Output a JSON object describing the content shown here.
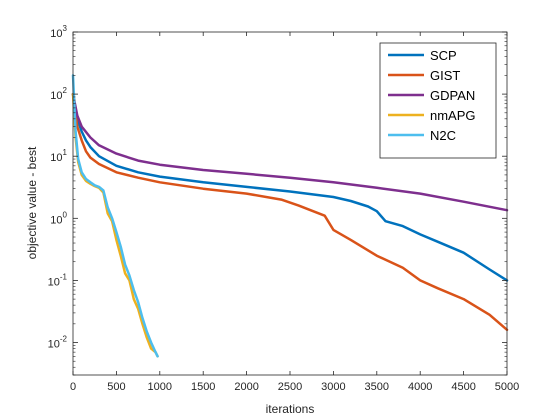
{
  "chart_data": {
    "type": "line",
    "xlabel": "iterations",
    "ylabel": "objective value - best",
    "xlim": [
      0,
      5000
    ],
    "ylim": [
      0.003,
      1000
    ],
    "yscale": "log",
    "grid": false,
    "legend_placement": "top-right",
    "x_ticks": [
      0,
      500,
      1000,
      1500,
      2000,
      2500,
      3000,
      3500,
      4000,
      4500,
      5000
    ],
    "x_tick_labels": [
      "0",
      "500",
      "1000",
      "1500",
      "2000",
      "2500",
      "3000",
      "3500",
      "4000",
      "4500",
      "5000"
    ],
    "y_ticks": [
      0.01,
      0.1,
      1,
      10,
      100,
      1000
    ],
    "y_tick_labels": [
      {
        "base": "10",
        "exp": "-2"
      },
      {
        "base": "10",
        "exp": "-1"
      },
      {
        "base": "10",
        "exp": "0"
      },
      {
        "base": "10",
        "exp": "1"
      },
      {
        "base": "10",
        "exp": "2"
      },
      {
        "base": "10",
        "exp": "3"
      }
    ],
    "series": [
      {
        "name": "SCP",
        "color": "#0072BD",
        "x": [
          0,
          50,
          100,
          150,
          200,
          300,
          500,
          750,
          1000,
          1500,
          2000,
          2500,
          3000,
          3200,
          3400,
          3500,
          3600,
          3800,
          4000,
          4200,
          4500,
          4800,
          5000
        ],
        "y": [
          100,
          40,
          25,
          18,
          14,
          10,
          7,
          5.5,
          4.7,
          3.8,
          3.2,
          2.7,
          2.2,
          1.9,
          1.55,
          1.3,
          0.9,
          0.75,
          0.55,
          0.42,
          0.28,
          0.15,
          0.1
        ]
      },
      {
        "name": "GIST",
        "color": "#D95319",
        "x": [
          0,
          50,
          100,
          150,
          200,
          300,
          500,
          750,
          1000,
          1500,
          2000,
          2400,
          2600,
          2800,
          2900,
          3000,
          3200,
          3500,
          3800,
          4000,
          4200,
          4500,
          4800,
          5000
        ],
        "y": [
          100,
          30,
          18,
          12,
          9.5,
          7.5,
          5.5,
          4.5,
          3.8,
          3,
          2.5,
          2,
          1.6,
          1.25,
          1.1,
          0.65,
          0.45,
          0.25,
          0.16,
          0.1,
          0.075,
          0.05,
          0.028,
          0.016
        ]
      },
      {
        "name": "GDPAN",
        "color": "#7E2F8E",
        "x": [
          0,
          50,
          100,
          200,
          300,
          500,
          750,
          1000,
          1500,
          2000,
          2500,
          3000,
          3500,
          4000,
          4500,
          5000
        ],
        "y": [
          100,
          45,
          30,
          20,
          15,
          11,
          8.5,
          7.3,
          6,
          5.2,
          4.5,
          3.8,
          3.1,
          2.5,
          1.85,
          1.35
        ]
      },
      {
        "name": "nmAPG",
        "color": "#EDB120",
        "x": [
          0,
          30,
          60,
          100,
          150,
          200,
          250,
          300,
          350,
          400,
          450,
          500,
          550,
          600,
          650,
          700,
          750,
          800,
          850,
          900,
          950,
          975
        ],
        "y": [
          100,
          20,
          8,
          5,
          4,
          3.6,
          3.3,
          3.1,
          2.6,
          1.2,
          0.9,
          0.45,
          0.25,
          0.13,
          0.1,
          0.05,
          0.035,
          0.02,
          0.012,
          0.008,
          0.007,
          0.006
        ]
      },
      {
        "name": "N2C",
        "color": "#4DBEEE",
        "x": [
          0,
          30,
          60,
          100,
          150,
          200,
          250,
          300,
          350,
          400,
          450,
          500,
          550,
          600,
          650,
          700,
          750,
          800,
          850,
          900,
          950,
          975
        ],
        "y": [
          200,
          25,
          9,
          5.5,
          4.3,
          3.8,
          3.4,
          3.2,
          2.8,
          1.5,
          1,
          0.6,
          0.35,
          0.18,
          0.12,
          0.07,
          0.045,
          0.025,
          0.015,
          0.01,
          0.007,
          0.006
        ]
      }
    ]
  }
}
